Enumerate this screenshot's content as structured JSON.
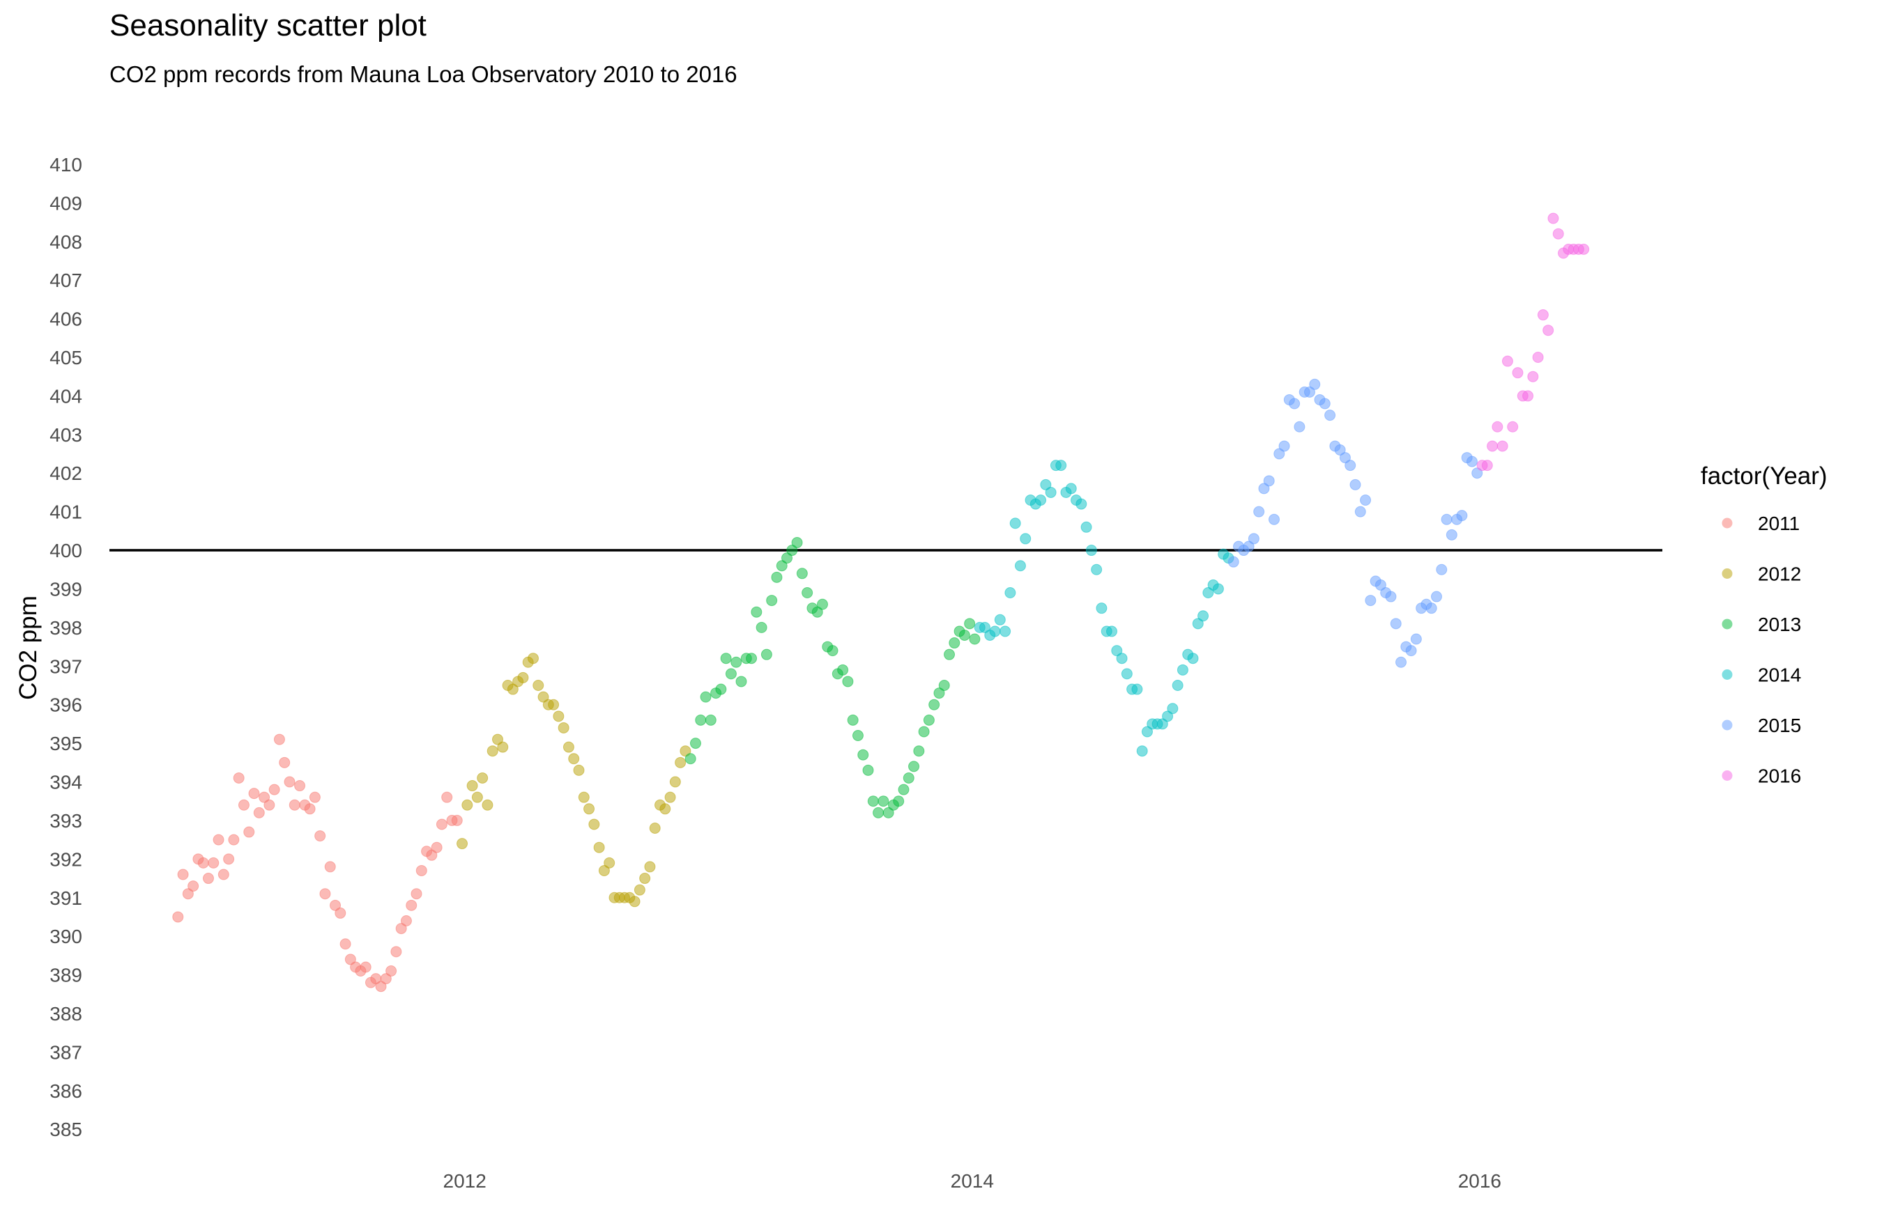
{
  "chart_data": {
    "type": "scatter",
    "title": "Seasonality scatter plot",
    "subtitle": "CO2 ppm records from Mauna Loa Observatory 2010  to 2016",
    "xlabel": "",
    "ylabel": "CO2 ppm",
    "xlim": [
      2010.6,
      2016.72
    ],
    "ylim": [
      384.3,
      411.1
    ],
    "x_ticks": [
      2012,
      2014,
      2016
    ],
    "y_ticks": [
      385,
      386,
      387,
      388,
      389,
      390,
      391,
      392,
      393,
      394,
      395,
      396,
      397,
      398,
      399,
      400,
      401,
      402,
      403,
      404,
      405,
      406,
      407,
      408,
      409,
      410
    ],
    "hline": {
      "y": 400,
      "color": "#000000"
    },
    "grid": false,
    "legend": {
      "title": "factor(Year)",
      "position": "right"
    },
    "point_opacity": 0.5,
    "series": [
      {
        "name": "2011",
        "color": "#F8766D",
        "x": [
          2010.87,
          2010.89,
          2010.91,
          2010.93,
          2010.95,
          2010.97,
          2010.99,
          2011.01,
          2011.03,
          2011.05,
          2011.07,
          2011.09,
          2011.11,
          2011.13,
          2011.15,
          2011.17,
          2011.19,
          2011.21,
          2011.23,
          2011.25,
          2011.27,
          2011.29,
          2011.31,
          2011.33,
          2011.35,
          2011.37,
          2011.39,
          2011.41,
          2011.43,
          2011.45,
          2011.47,
          2011.49,
          2011.51,
          2011.53,
          2011.55,
          2011.57,
          2011.59,
          2011.61,
          2011.63,
          2011.65,
          2011.67,
          2011.69,
          2011.71,
          2011.73,
          2011.75,
          2011.77,
          2011.79,
          2011.81,
          2011.83,
          2011.85,
          2011.87,
          2011.89,
          2011.91,
          2011.93,
          2011.95,
          2011.97
        ],
        "y": [
          390.5,
          391.6,
          391.1,
          391.3,
          392.0,
          391.9,
          391.5,
          391.9,
          392.5,
          391.6,
          392.0,
          392.5,
          394.1,
          393.4,
          392.7,
          393.7,
          393.2,
          393.6,
          393.4,
          393.8,
          395.1,
          394.5,
          394.0,
          393.4,
          393.9,
          393.4,
          393.3,
          393.6,
          392.6,
          391.1,
          391.8,
          390.8,
          390.6,
          389.8,
          389.4,
          389.2,
          389.1,
          389.2,
          388.8,
          388.9,
          388.7,
          388.9,
          389.1,
          389.6,
          390.2,
          390.4,
          390.8,
          391.1,
          391.7,
          392.2,
          392.1,
          392.3,
          392.9,
          393.6,
          393.0,
          393.0
        ]
      },
      {
        "name": "2012",
        "color": "#B79F00",
        "x": [
          2011.99,
          2012.01,
          2012.03,
          2012.05,
          2012.07,
          2012.09,
          2012.11,
          2012.13,
          2012.15,
          2012.17,
          2012.19,
          2012.21,
          2012.23,
          2012.25,
          2012.27,
          2012.29,
          2012.31,
          2012.33,
          2012.35,
          2012.37,
          2012.39,
          2012.41,
          2012.43,
          2012.45,
          2012.47,
          2012.49,
          2012.51,
          2012.53,
          2012.55,
          2012.57,
          2012.59,
          2012.61,
          2012.63,
          2012.65,
          2012.67,
          2012.69,
          2012.71,
          2012.73,
          2012.75,
          2012.77,
          2012.79,
          2012.81,
          2012.83,
          2012.85,
          2012.87
        ],
        "y": [
          392.4,
          393.4,
          393.9,
          393.6,
          394.1,
          393.4,
          394.8,
          395.1,
          394.9,
          396.5,
          396.4,
          396.6,
          396.7,
          397.1,
          397.2,
          396.5,
          396.2,
          396.0,
          396.0,
          395.7,
          395.4,
          394.9,
          394.6,
          394.3,
          393.6,
          393.3,
          392.9,
          392.3,
          391.7,
          391.9,
          391.0,
          391.0,
          391.0,
          391.0,
          390.9,
          391.2,
          391.5,
          391.8,
          392.8,
          393.4,
          393.3,
          393.6,
          394.0,
          394.5,
          394.8
        ]
      },
      {
        "name": "2013",
        "color": "#00BA38",
        "x": [
          2012.89,
          2012.91,
          2012.93,
          2012.95,
          2012.97,
          2012.99,
          2013.01,
          2013.03,
          2013.05,
          2013.07,
          2013.09,
          2013.11,
          2013.13,
          2013.15,
          2013.17,
          2013.19,
          2013.21,
          2013.23,
          2013.25,
          2013.27,
          2013.29,
          2013.31,
          2013.33,
          2013.35,
          2013.37,
          2013.39,
          2013.41,
          2013.43,
          2013.45,
          2013.47,
          2013.49,
          2013.51,
          2013.53,
          2013.55,
          2013.57,
          2013.59,
          2013.61,
          2013.63,
          2013.65,
          2013.67,
          2013.69,
          2013.71,
          2013.73,
          2013.75,
          2013.77,
          2013.79,
          2013.81,
          2013.83,
          2013.85,
          2013.87,
          2013.89,
          2013.91,
          2013.93,
          2013.95,
          2013.97,
          2013.99,
          2014.01
        ],
        "y": [
          394.6,
          395.0,
          395.6,
          396.2,
          395.6,
          396.3,
          396.4,
          397.2,
          396.8,
          397.1,
          396.6,
          397.2,
          397.2,
          398.4,
          398.0,
          397.3,
          398.7,
          399.3,
          399.6,
          399.8,
          400.0,
          400.2,
          399.4,
          398.9,
          398.5,
          398.4,
          398.6,
          397.5,
          397.4,
          396.8,
          396.9,
          396.6,
          395.6,
          395.2,
          394.7,
          394.3,
          393.5,
          393.2,
          393.5,
          393.2,
          393.4,
          393.5,
          393.8,
          394.1,
          394.4,
          394.8,
          395.3,
          395.6,
          396.0,
          396.3,
          396.5,
          397.3,
          397.6,
          397.9,
          397.8,
          398.1,
          397.7
        ]
      },
      {
        "name": "2014",
        "color": "#00BFC4",
        "x": [
          2014.03,
          2014.05,
          2014.07,
          2014.09,
          2014.11,
          2014.13,
          2014.15,
          2014.17,
          2014.19,
          2014.21,
          2014.23,
          2014.25,
          2014.27,
          2014.29,
          2014.31,
          2014.33,
          2014.35,
          2014.37,
          2014.39,
          2014.41,
          2014.43,
          2014.45,
          2014.47,
          2014.49,
          2014.51,
          2014.53,
          2014.55,
          2014.57,
          2014.59,
          2014.61,
          2014.63,
          2014.65,
          2014.67,
          2014.69,
          2014.71,
          2014.73,
          2014.75,
          2014.77,
          2014.79,
          2014.81,
          2014.83,
          2014.85,
          2014.87,
          2014.89,
          2014.91,
          2014.93,
          2014.95,
          2014.97,
          2014.99,
          2015.01
        ],
        "y": [
          398.0,
          398.0,
          397.8,
          397.9,
          398.2,
          397.9,
          398.9,
          400.7,
          399.6,
          400.3,
          401.3,
          401.2,
          401.3,
          401.7,
          401.5,
          402.2,
          402.2,
          401.5,
          401.6,
          401.3,
          401.2,
          400.6,
          400.0,
          399.5,
          398.5,
          397.9,
          397.9,
          397.4,
          397.2,
          396.8,
          396.4,
          396.4,
          394.8,
          395.3,
          395.5,
          395.5,
          395.5,
          395.7,
          395.9,
          396.5,
          396.9,
          397.3,
          397.2,
          398.1,
          398.3,
          398.9,
          399.1,
          399.0,
          399.9,
          399.8
        ]
      },
      {
        "name": "2015",
        "color": "#619CFF",
        "x": [
          2015.03,
          2015.05,
          2015.07,
          2015.09,
          2015.11,
          2015.13,
          2015.15,
          2015.17,
          2015.19,
          2015.21,
          2015.23,
          2015.25,
          2015.27,
          2015.29,
          2015.31,
          2015.33,
          2015.35,
          2015.37,
          2015.39,
          2015.41,
          2015.43,
          2015.45,
          2015.47,
          2015.49,
          2015.51,
          2015.53,
          2015.55,
          2015.57,
          2015.59,
          2015.61,
          2015.63,
          2015.65,
          2015.67,
          2015.69,
          2015.71,
          2015.73,
          2015.75,
          2015.77,
          2015.79,
          2015.81,
          2015.83,
          2015.85,
          2015.87,
          2015.89,
          2015.91,
          2015.93,
          2015.95,
          2015.97,
          2015.99
        ],
        "y": [
          399.7,
          400.1,
          400.0,
          400.1,
          400.3,
          401.0,
          401.6,
          401.8,
          400.8,
          402.5,
          402.7,
          403.9,
          403.8,
          403.2,
          404.1,
          404.1,
          404.3,
          403.9,
          403.8,
          403.5,
          402.7,
          402.6,
          402.4,
          402.2,
          401.7,
          401.0,
          401.3,
          398.7,
          399.2,
          399.1,
          398.9,
          398.8,
          398.1,
          397.1,
          397.5,
          397.4,
          397.7,
          398.5,
          398.6,
          398.5,
          398.8,
          399.5,
          400.8,
          400.4,
          400.8,
          400.9,
          402.4,
          402.3,
          402.0
        ]
      },
      {
        "name": "2016",
        "color": "#F564E3",
        "x": [
          2016.01,
          2016.03,
          2016.05,
          2016.07,
          2016.09,
          2016.11,
          2016.13,
          2016.15,
          2016.17,
          2016.19,
          2016.21,
          2016.23,
          2016.25,
          2016.27,
          2016.29,
          2016.31,
          2016.33,
          2016.35,
          2016.37,
          2016.39,
          2016.41
        ],
        "y": [
          402.2,
          402.2,
          402.7,
          403.2,
          402.7,
          404.9,
          403.2,
          404.6,
          404.0,
          404.0,
          404.5,
          405.0,
          406.1,
          405.7,
          408.6,
          408.2,
          407.7,
          407.8,
          407.8,
          407.8,
          407.8
        ]
      }
    ]
  }
}
